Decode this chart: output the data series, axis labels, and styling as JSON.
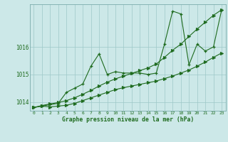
{
  "x": [
    0,
    1,
    2,
    3,
    4,
    5,
    6,
    7,
    8,
    9,
    10,
    11,
    12,
    13,
    14,
    15,
    16,
    17,
    18,
    19,
    20,
    21,
    22,
    23
  ],
  "y_main": [
    1013.8,
    1013.85,
    1013.9,
    1013.95,
    1014.35,
    1014.5,
    1014.65,
    1015.3,
    1015.75,
    1015.0,
    1015.1,
    1015.05,
    1015.05,
    1015.05,
    1015.0,
    1015.05,
    1016.1,
    1017.3,
    1017.2,
    1015.35,
    1016.1,
    1015.85,
    1016.0,
    1017.35
  ],
  "y_low": [
    1013.8,
    1013.85,
    1013.82,
    1013.85,
    1013.88,
    1013.95,
    1014.05,
    1014.15,
    1014.25,
    1014.35,
    1014.45,
    1014.52,
    1014.58,
    1014.64,
    1014.7,
    1014.76,
    1014.85,
    1014.94,
    1015.05,
    1015.16,
    1015.3,
    1015.45,
    1015.62,
    1015.78
  ],
  "y_high": [
    1013.8,
    1013.87,
    1013.93,
    1013.98,
    1014.05,
    1014.15,
    1014.28,
    1014.42,
    1014.58,
    1014.72,
    1014.84,
    1014.94,
    1015.04,
    1015.14,
    1015.24,
    1015.38,
    1015.62,
    1015.88,
    1016.1,
    1016.38,
    1016.65,
    1016.9,
    1017.15,
    1017.35
  ],
  "ylim": [
    1013.68,
    1017.55
  ],
  "yticks": [
    1014,
    1015,
    1016
  ],
  "xticks": [
    0,
    1,
    2,
    3,
    4,
    5,
    6,
    7,
    8,
    9,
    10,
    11,
    12,
    13,
    14,
    15,
    16,
    17,
    18,
    19,
    20,
    21,
    22,
    23
  ],
  "xlabel": "Graphe pression niveau de la mer (hPa)",
  "line_color": "#1e6b1e",
  "bg_color": "#cce8e8",
  "grid_color": "#9ec8c8",
  "linewidth": 0.8,
  "marker_size_main": 3,
  "marker_size_trend": 3
}
